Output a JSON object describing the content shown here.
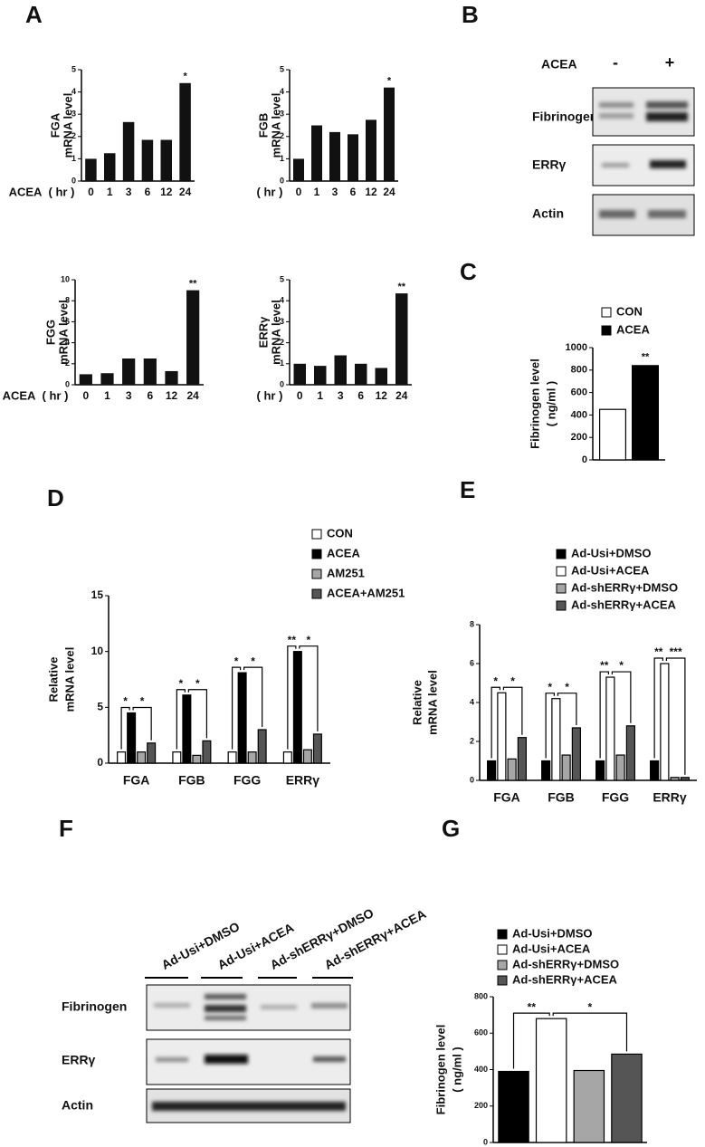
{
  "panels": [
    "A",
    "B",
    "C",
    "D",
    "E",
    "F",
    "G"
  ],
  "blot_b": {
    "treatment": "ACEA",
    "lanes": [
      "-",
      "+"
    ],
    "rows": [
      "Fibrinogen",
      "ERRγ",
      "Actin"
    ]
  },
  "blot_f": {
    "lanes": [
      "Ad-Usi+DMSO",
      "Ad-Usi+ACEA",
      "Ad-shERRγ+DMSO",
      "Ad-shERRγ+ACEA"
    ],
    "rows": [
      "Fibrinogen",
      "ERRγ",
      "Actin"
    ]
  },
  "chart_data": [
    {
      "type": "bar",
      "ylabel": [
        "FGA",
        "mRNA level"
      ],
      "x_prefix": "ACEA",
      "x_unit": "( hr )",
      "categories": [
        "0",
        "1",
        "3",
        "6",
        "12",
        "24"
      ],
      "values": [
        1,
        1.25,
        2.65,
        1.85,
        1.85,
        4.4
      ],
      "color": "#111111",
      "ylim": [
        0,
        5
      ],
      "yticks": [
        0,
        1,
        2,
        3,
        4,
        5
      ],
      "significance": [
        null,
        null,
        null,
        null,
        null,
        "*"
      ]
    },
    {
      "type": "bar",
      "ylabel": [
        "FGB",
        "mRNA level"
      ],
      "x_unit": "( hr )",
      "categories": [
        "0",
        "1",
        "3",
        "6",
        "12",
        "24"
      ],
      "values": [
        1,
        2.5,
        2.2,
        2.1,
        2.75,
        4.2
      ],
      "color": "#111111",
      "ylim": [
        0,
        5
      ],
      "yticks": [
        0,
        1,
        2,
        3,
        4,
        5
      ],
      "significance": [
        null,
        null,
        null,
        null,
        null,
        "*"
      ]
    },
    {
      "type": "bar",
      "ylabel": [
        "FGG",
        "mRNA level"
      ],
      "x_prefix": "ACEA",
      "x_unit": "( hr )",
      "categories": [
        "0",
        "1",
        "3",
        "6",
        "12",
        "24"
      ],
      "values": [
        1,
        1.1,
        2.5,
        2.5,
        1.3,
        9
      ],
      "color": "#111111",
      "ylim": [
        0,
        10
      ],
      "yticks": [
        0,
        2,
        4,
        6,
        8,
        10
      ],
      "significance": [
        null,
        null,
        null,
        null,
        null,
        "**"
      ]
    },
    {
      "type": "bar",
      "ylabel": [
        "ERRγ",
        "mRNA level"
      ],
      "x_unit": "( hr )",
      "categories": [
        "0",
        "1",
        "3",
        "6",
        "12",
        "24"
      ],
      "values": [
        1,
        0.9,
        1.4,
        1,
        0.8,
        4.35
      ],
      "color": "#111111",
      "ylim": [
        0,
        5
      ],
      "yticks": [
        0,
        1,
        2,
        3,
        4,
        5
      ],
      "significance": [
        null,
        null,
        null,
        null,
        null,
        "**"
      ]
    },
    {
      "type": "grouped_bar",
      "ylabel": [
        "Fibrinogen level",
        "( ng/ml )"
      ],
      "categories": [
        null
      ],
      "series": [
        {
          "name": "CON",
          "color": "#ffffff",
          "values": [
            450
          ]
        },
        {
          "name": "ACEA",
          "color": "#000000",
          "values": [
            840
          ]
        }
      ],
      "ylim": [
        0,
        1000
      ],
      "yticks": [
        0,
        200,
        400,
        600,
        800,
        1000
      ],
      "significance": [
        [
          "**"
        ]
      ]
    },
    {
      "type": "grouped_bar",
      "ylabel": [
        "Relative",
        "mRNA level"
      ],
      "categories": [
        "FGA",
        "FGB",
        "FGG",
        "ERRγ"
      ],
      "series": [
        {
          "name": "CON",
          "color": "#ffffff",
          "values": [
            1,
            1,
            1,
            1
          ]
        },
        {
          "name": "ACEA",
          "color": "#000000",
          "values": [
            4.5,
            6.1,
            8.1,
            10
          ]
        },
        {
          "name": "AM251",
          "color": "#a6a6a6",
          "values": [
            1,
            0.7,
            1,
            1.2
          ]
        },
        {
          "name": "ACEA+AM251",
          "color": "#555555",
          "values": [
            1.8,
            2,
            3,
            2.6
          ]
        }
      ],
      "ylim": [
        0,
        15
      ],
      "yticks": [
        0,
        5,
        10,
        15
      ],
      "significance": [
        [
          "*",
          "*"
        ],
        [
          "*",
          "*"
        ],
        [
          "*",
          "*"
        ],
        [
          "**",
          "*"
        ]
      ]
    },
    {
      "type": "grouped_bar",
      "ylabel": [
        "Relative",
        "mRNA level"
      ],
      "categories": [
        "FGA",
        "FGB",
        "FGG",
        "ERRγ"
      ],
      "series": [
        {
          "name": "Ad-Usi+DMSO",
          "color": "#000000",
          "values": [
            1,
            1,
            1,
            1
          ]
        },
        {
          "name": "Ad-Usi+ACEA",
          "color": "#ffffff",
          "values": [
            4.5,
            4.2,
            5.3,
            6
          ]
        },
        {
          "name": "Ad-shERRγ+DMSO",
          "color": "#a6a6a6",
          "values": [
            1.1,
            1.3,
            1.3,
            0.15
          ]
        },
        {
          "name": "Ad-shERRγ+ACEA",
          "color": "#555555",
          "values": [
            2.2,
            2.7,
            2.8,
            0.15
          ]
        }
      ],
      "ylim": [
        0,
        8
      ],
      "yticks": [
        0,
        2,
        4,
        6,
        8
      ],
      "significance": [
        [
          "*",
          "*"
        ],
        [
          "*",
          "*"
        ],
        [
          "**",
          "*"
        ],
        [
          "**",
          "***"
        ]
      ]
    },
    {
      "type": "grouped_bar",
      "ylabel": [
        "Fibrinogen level",
        "( ng/ml )"
      ],
      "categories": [
        null
      ],
      "series": [
        {
          "name": "Ad-Usi+DMSO",
          "color": "#000000",
          "values": [
            390
          ]
        },
        {
          "name": "Ad-Usi+ACEA",
          "color": "#ffffff",
          "values": [
            680
          ]
        },
        {
          "name": "Ad-shERRγ+DMSO",
          "color": "#a6a6a6",
          "values": [
            395
          ]
        },
        {
          "name": "Ad-shERRγ+ACEA",
          "color": "#555555",
          "values": [
            485
          ]
        }
      ],
      "ylim": [
        0,
        800
      ],
      "yticks": [
        0,
        200,
        400,
        600,
        800
      ],
      "significance": [
        [
          "**",
          "*"
        ]
      ]
    }
  ]
}
